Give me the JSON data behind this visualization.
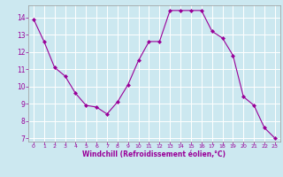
{
  "x": [
    0,
    1,
    2,
    3,
    4,
    5,
    6,
    7,
    8,
    9,
    10,
    11,
    12,
    13,
    14,
    15,
    16,
    17,
    18,
    19,
    20,
    21,
    22,
    23
  ],
  "y": [
    13.9,
    12.6,
    11.1,
    10.6,
    9.6,
    8.9,
    8.8,
    8.4,
    9.1,
    10.1,
    11.5,
    12.6,
    12.6,
    14.4,
    14.4,
    14.4,
    14.4,
    13.2,
    12.8,
    11.8,
    9.4,
    8.9,
    7.6,
    7.0
  ],
  "line_color": "#990099",
  "marker": "D",
  "marker_size": 2,
  "bg_color": "#cce8f0",
  "grid_color": "#ffffff",
  "xlabel": "Windchill (Refroidissement éolien,°C)",
  "xlabel_color": "#990099",
  "tick_color": "#990099",
  "ylim": [
    6.8,
    14.7
  ],
  "yticks": [
    7,
    8,
    9,
    10,
    11,
    12,
    13,
    14
  ],
  "xlim": [
    -0.5,
    23.5
  ],
  "xticks": [
    0,
    1,
    2,
    3,
    4,
    5,
    6,
    7,
    8,
    9,
    10,
    11,
    12,
    13,
    14,
    15,
    16,
    17,
    18,
    19,
    20,
    21,
    22,
    23
  ]
}
